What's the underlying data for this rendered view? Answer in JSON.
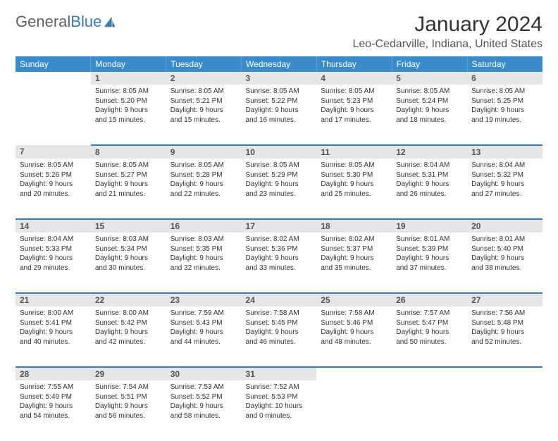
{
  "logo": {
    "text1": "General",
    "text2": "Blue"
  },
  "title": "January 2024",
  "location": "Leo-Cedarville, Indiana, United States",
  "colors": {
    "header_bg": "#3a8bc9",
    "header_border": "#5aa0d5",
    "row_border": "#3a7db5",
    "daynum_bg": "#e6e6e6"
  },
  "daynames": [
    "Sunday",
    "Monday",
    "Tuesday",
    "Wednesday",
    "Thursday",
    "Friday",
    "Saturday"
  ],
  "weeks": [
    [
      {
        "n": "",
        "l1": "",
        "l2": "",
        "l3": "",
        "l4": ""
      },
      {
        "n": "1",
        "l1": "Sunrise: 8:05 AM",
        "l2": "Sunset: 5:20 PM",
        "l3": "Daylight: 9 hours",
        "l4": "and 15 minutes."
      },
      {
        "n": "2",
        "l1": "Sunrise: 8:05 AM",
        "l2": "Sunset: 5:21 PM",
        "l3": "Daylight: 9 hours",
        "l4": "and 15 minutes."
      },
      {
        "n": "3",
        "l1": "Sunrise: 8:05 AM",
        "l2": "Sunset: 5:22 PM",
        "l3": "Daylight: 9 hours",
        "l4": "and 16 minutes."
      },
      {
        "n": "4",
        "l1": "Sunrise: 8:05 AM",
        "l2": "Sunset: 5:23 PM",
        "l3": "Daylight: 9 hours",
        "l4": "and 17 minutes."
      },
      {
        "n": "5",
        "l1": "Sunrise: 8:05 AM",
        "l2": "Sunset: 5:24 PM",
        "l3": "Daylight: 9 hours",
        "l4": "and 18 minutes."
      },
      {
        "n": "6",
        "l1": "Sunrise: 8:05 AM",
        "l2": "Sunset: 5:25 PM",
        "l3": "Daylight: 9 hours",
        "l4": "and 19 minutes."
      }
    ],
    [
      {
        "n": "7",
        "l1": "Sunrise: 8:05 AM",
        "l2": "Sunset: 5:26 PM",
        "l3": "Daylight: 9 hours",
        "l4": "and 20 minutes."
      },
      {
        "n": "8",
        "l1": "Sunrise: 8:05 AM",
        "l2": "Sunset: 5:27 PM",
        "l3": "Daylight: 9 hours",
        "l4": "and 21 minutes."
      },
      {
        "n": "9",
        "l1": "Sunrise: 8:05 AM",
        "l2": "Sunset: 5:28 PM",
        "l3": "Daylight: 9 hours",
        "l4": "and 22 minutes."
      },
      {
        "n": "10",
        "l1": "Sunrise: 8:05 AM",
        "l2": "Sunset: 5:29 PM",
        "l3": "Daylight: 9 hours",
        "l4": "and 23 minutes."
      },
      {
        "n": "11",
        "l1": "Sunrise: 8:05 AM",
        "l2": "Sunset: 5:30 PM",
        "l3": "Daylight: 9 hours",
        "l4": "and 25 minutes."
      },
      {
        "n": "12",
        "l1": "Sunrise: 8:04 AM",
        "l2": "Sunset: 5:31 PM",
        "l3": "Daylight: 9 hours",
        "l4": "and 26 minutes."
      },
      {
        "n": "13",
        "l1": "Sunrise: 8:04 AM",
        "l2": "Sunset: 5:32 PM",
        "l3": "Daylight: 9 hours",
        "l4": "and 27 minutes."
      }
    ],
    [
      {
        "n": "14",
        "l1": "Sunrise: 8:04 AM",
        "l2": "Sunset: 5:33 PM",
        "l3": "Daylight: 9 hours",
        "l4": "and 29 minutes."
      },
      {
        "n": "15",
        "l1": "Sunrise: 8:03 AM",
        "l2": "Sunset: 5:34 PM",
        "l3": "Daylight: 9 hours",
        "l4": "and 30 minutes."
      },
      {
        "n": "16",
        "l1": "Sunrise: 8:03 AM",
        "l2": "Sunset: 5:35 PM",
        "l3": "Daylight: 9 hours",
        "l4": "and 32 minutes."
      },
      {
        "n": "17",
        "l1": "Sunrise: 8:02 AM",
        "l2": "Sunset: 5:36 PM",
        "l3": "Daylight: 9 hours",
        "l4": "and 33 minutes."
      },
      {
        "n": "18",
        "l1": "Sunrise: 8:02 AM",
        "l2": "Sunset: 5:37 PM",
        "l3": "Daylight: 9 hours",
        "l4": "and 35 minutes."
      },
      {
        "n": "19",
        "l1": "Sunrise: 8:01 AM",
        "l2": "Sunset: 5:39 PM",
        "l3": "Daylight: 9 hours",
        "l4": "and 37 minutes."
      },
      {
        "n": "20",
        "l1": "Sunrise: 8:01 AM",
        "l2": "Sunset: 5:40 PM",
        "l3": "Daylight: 9 hours",
        "l4": "and 38 minutes."
      }
    ],
    [
      {
        "n": "21",
        "l1": "Sunrise: 8:00 AM",
        "l2": "Sunset: 5:41 PM",
        "l3": "Daylight: 9 hours",
        "l4": "and 40 minutes."
      },
      {
        "n": "22",
        "l1": "Sunrise: 8:00 AM",
        "l2": "Sunset: 5:42 PM",
        "l3": "Daylight: 9 hours",
        "l4": "and 42 minutes."
      },
      {
        "n": "23",
        "l1": "Sunrise: 7:59 AM",
        "l2": "Sunset: 5:43 PM",
        "l3": "Daylight: 9 hours",
        "l4": "and 44 minutes."
      },
      {
        "n": "24",
        "l1": "Sunrise: 7:58 AM",
        "l2": "Sunset: 5:45 PM",
        "l3": "Daylight: 9 hours",
        "l4": "and 46 minutes."
      },
      {
        "n": "25",
        "l1": "Sunrise: 7:58 AM",
        "l2": "Sunset: 5:46 PM",
        "l3": "Daylight: 9 hours",
        "l4": "and 48 minutes."
      },
      {
        "n": "26",
        "l1": "Sunrise: 7:57 AM",
        "l2": "Sunset: 5:47 PM",
        "l3": "Daylight: 9 hours",
        "l4": "and 50 minutes."
      },
      {
        "n": "27",
        "l1": "Sunrise: 7:56 AM",
        "l2": "Sunset: 5:48 PM",
        "l3": "Daylight: 9 hours",
        "l4": "and 52 minutes."
      }
    ],
    [
      {
        "n": "28",
        "l1": "Sunrise: 7:55 AM",
        "l2": "Sunset: 5:49 PM",
        "l3": "Daylight: 9 hours",
        "l4": "and 54 minutes."
      },
      {
        "n": "29",
        "l1": "Sunrise: 7:54 AM",
        "l2": "Sunset: 5:51 PM",
        "l3": "Daylight: 9 hours",
        "l4": "and 56 minutes."
      },
      {
        "n": "30",
        "l1": "Sunrise: 7:53 AM",
        "l2": "Sunset: 5:52 PM",
        "l3": "Daylight: 9 hours",
        "l4": "and 58 minutes."
      },
      {
        "n": "31",
        "l1": "Sunrise: 7:52 AM",
        "l2": "Sunset: 5:53 PM",
        "l3": "Daylight: 10 hours",
        "l4": "and 0 minutes."
      },
      {
        "n": "",
        "l1": "",
        "l2": "",
        "l3": "",
        "l4": ""
      },
      {
        "n": "",
        "l1": "",
        "l2": "",
        "l3": "",
        "l4": ""
      },
      {
        "n": "",
        "l1": "",
        "l2": "",
        "l3": "",
        "l4": ""
      }
    ]
  ]
}
